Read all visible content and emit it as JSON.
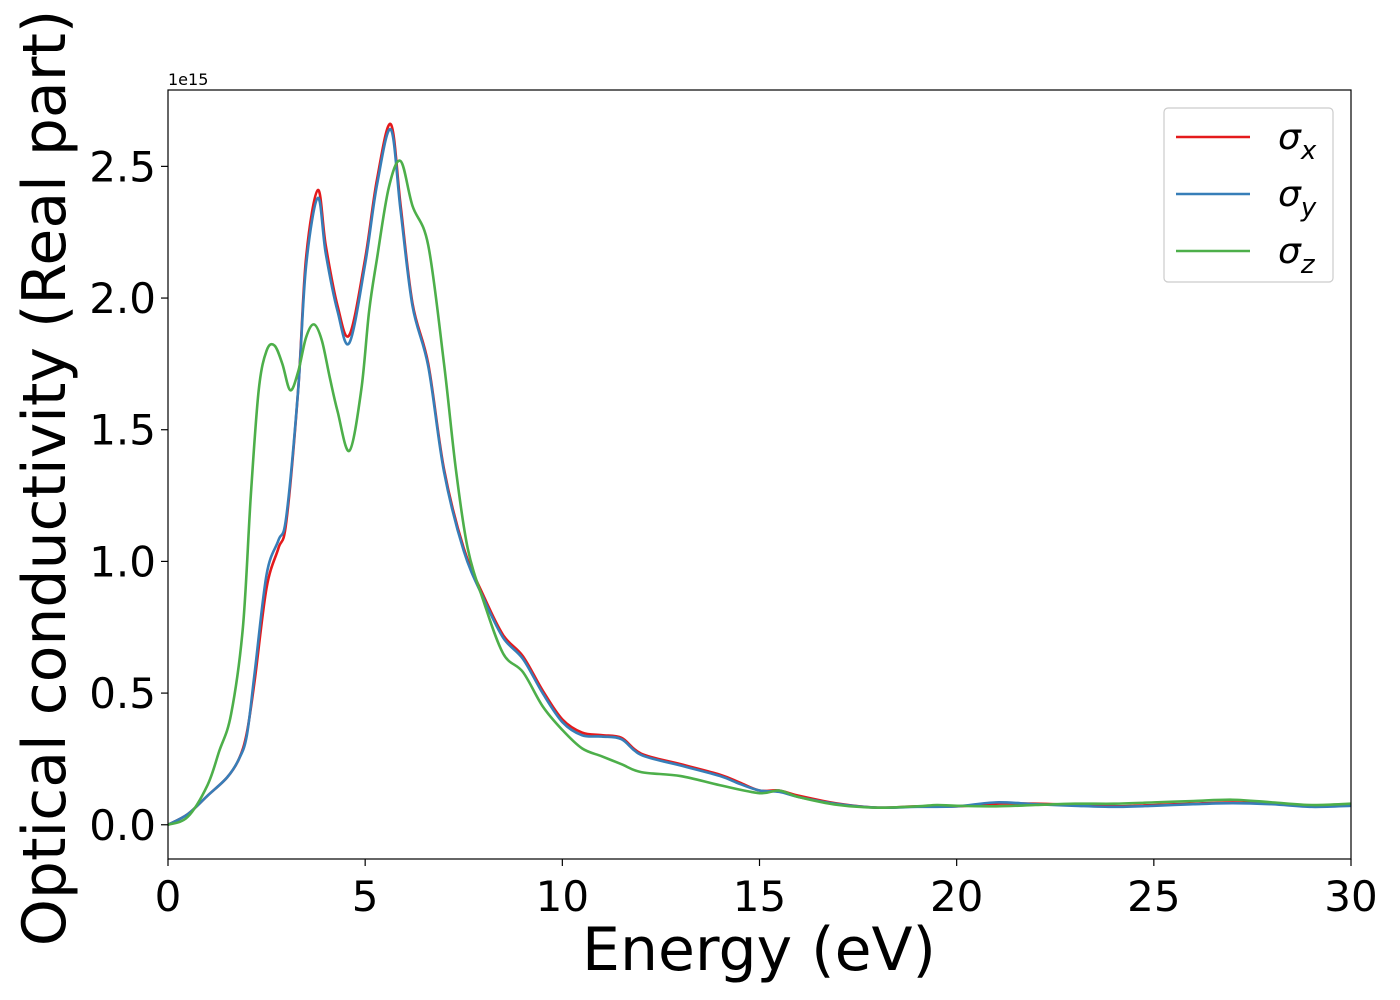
{
  "chart_data": {
    "type": "line",
    "title": "",
    "xlabel": "Energy (eV)",
    "ylabel": "Optical conductivity (Real part)",
    "offset_label": "1e15",
    "y_scale_factor": 1000000000000000.0,
    "xlim": [
      0,
      30
    ],
    "ylim": [
      -0.13,
      2.79
    ],
    "xticks": [
      0,
      5,
      10,
      15,
      20,
      25,
      30
    ],
    "xtick_labels": [
      "0",
      "5",
      "10",
      "15",
      "20",
      "25",
      "30"
    ],
    "yticks": [
      0.0,
      0.5,
      1.0,
      1.5,
      2.0,
      2.5
    ],
    "ytick_labels": [
      "0.0",
      "0.5",
      "1.0",
      "1.5",
      "2.0",
      "2.5"
    ],
    "grid": false,
    "legend_position": "top-right",
    "series": [
      {
        "name": "σx",
        "legend_symbol": "σ",
        "legend_sub": "x",
        "color": "#e41a1c",
        "x": [
          0,
          0.5,
          1.0,
          1.5,
          1.8,
          2.0,
          2.2,
          2.5,
          2.8,
          3.0,
          3.3,
          3.5,
          3.8,
          4.0,
          4.3,
          4.6,
          5.0,
          5.3,
          5.65,
          5.9,
          6.2,
          6.6,
          7.0,
          7.5,
          8.0,
          8.5,
          9.0,
          9.5,
          10.0,
          10.5,
          11.0,
          11.5,
          12.0,
          13.0,
          14.0,
          14.5,
          15.0,
          15.5,
          16.0,
          17.0,
          18.0,
          19.0,
          20.0,
          21.0,
          22.0,
          23.0,
          24.0,
          25.0,
          26.0,
          27.0,
          28.0,
          29.0,
          30.0
        ],
        "y": [
          0.0,
          0.04,
          0.11,
          0.18,
          0.25,
          0.35,
          0.55,
          0.9,
          1.05,
          1.15,
          1.65,
          2.15,
          2.41,
          2.2,
          1.97,
          1.86,
          2.15,
          2.45,
          2.66,
          2.35,
          1.98,
          1.75,
          1.35,
          1.05,
          0.87,
          0.72,
          0.64,
          0.51,
          0.4,
          0.35,
          0.34,
          0.33,
          0.27,
          0.23,
          0.19,
          0.16,
          0.13,
          0.13,
          0.11,
          0.08,
          0.065,
          0.07,
          0.07,
          0.08,
          0.08,
          0.075,
          0.07,
          0.075,
          0.08,
          0.085,
          0.08,
          0.07,
          0.075
        ]
      },
      {
        "name": "σy",
        "legend_symbol": "σ",
        "legend_sub": "y",
        "color": "#377eb8",
        "x": [
          0,
          0.5,
          1.0,
          1.5,
          1.8,
          2.0,
          2.2,
          2.5,
          2.8,
          3.0,
          3.3,
          3.5,
          3.8,
          4.0,
          4.3,
          4.6,
          5.0,
          5.3,
          5.65,
          5.9,
          6.2,
          6.6,
          7.0,
          7.5,
          8.0,
          8.5,
          9.0,
          9.5,
          10.0,
          10.5,
          11.0,
          11.5,
          12.0,
          13.0,
          14.0,
          14.5,
          15.0,
          15.5,
          16.0,
          17.0,
          18.0,
          19.0,
          20.0,
          21.0,
          22.0,
          23.0,
          24.0,
          25.0,
          26.0,
          27.0,
          28.0,
          29.0,
          30.0
        ],
        "y": [
          0.0,
          0.04,
          0.11,
          0.18,
          0.25,
          0.34,
          0.58,
          0.95,
          1.08,
          1.17,
          1.65,
          2.12,
          2.38,
          2.17,
          1.95,
          1.83,
          2.13,
          2.43,
          2.64,
          2.33,
          1.97,
          1.74,
          1.34,
          1.04,
          0.86,
          0.71,
          0.63,
          0.5,
          0.39,
          0.34,
          0.335,
          0.325,
          0.265,
          0.225,
          0.185,
          0.155,
          0.13,
          0.125,
          0.105,
          0.078,
          0.065,
          0.068,
          0.07,
          0.085,
          0.078,
          0.072,
          0.068,
          0.072,
          0.078,
          0.082,
          0.078,
          0.068,
          0.072
        ]
      },
      {
        "name": "σz",
        "legend_symbol": "σ",
        "legend_sub": "z",
        "color": "#4daf4a",
        "x": [
          0,
          0.5,
          1.0,
          1.3,
          1.6,
          1.9,
          2.1,
          2.3,
          2.5,
          2.7,
          2.9,
          3.1,
          3.3,
          3.5,
          3.7,
          3.9,
          4.1,
          4.3,
          4.6,
          4.9,
          5.1,
          5.3,
          5.6,
          5.9,
          6.2,
          6.6,
          7.0,
          7.3,
          7.6,
          8.0,
          8.5,
          9.0,
          9.5,
          10.0,
          10.5,
          11.0,
          11.5,
          12.0,
          13.0,
          14.0,
          15.0,
          15.5,
          16.0,
          17.0,
          18.0,
          19.0,
          19.5,
          20.0,
          21.0,
          22.0,
          23.0,
          24.0,
          25.0,
          26.0,
          27.0,
          28.0,
          29.0,
          30.0
        ],
        "y": [
          0.0,
          0.03,
          0.15,
          0.28,
          0.42,
          0.75,
          1.25,
          1.65,
          1.8,
          1.82,
          1.75,
          1.65,
          1.72,
          1.85,
          1.9,
          1.84,
          1.7,
          1.57,
          1.42,
          1.65,
          1.95,
          2.15,
          2.42,
          2.52,
          2.35,
          2.2,
          1.75,
          1.35,
          1.05,
          0.85,
          0.65,
          0.58,
          0.45,
          0.36,
          0.29,
          0.26,
          0.23,
          0.2,
          0.185,
          0.15,
          0.12,
          0.13,
          0.105,
          0.075,
          0.065,
          0.07,
          0.075,
          0.072,
          0.07,
          0.075,
          0.08,
          0.08,
          0.085,
          0.09,
          0.095,
          0.085,
          0.075,
          0.08
        ]
      }
    ]
  }
}
